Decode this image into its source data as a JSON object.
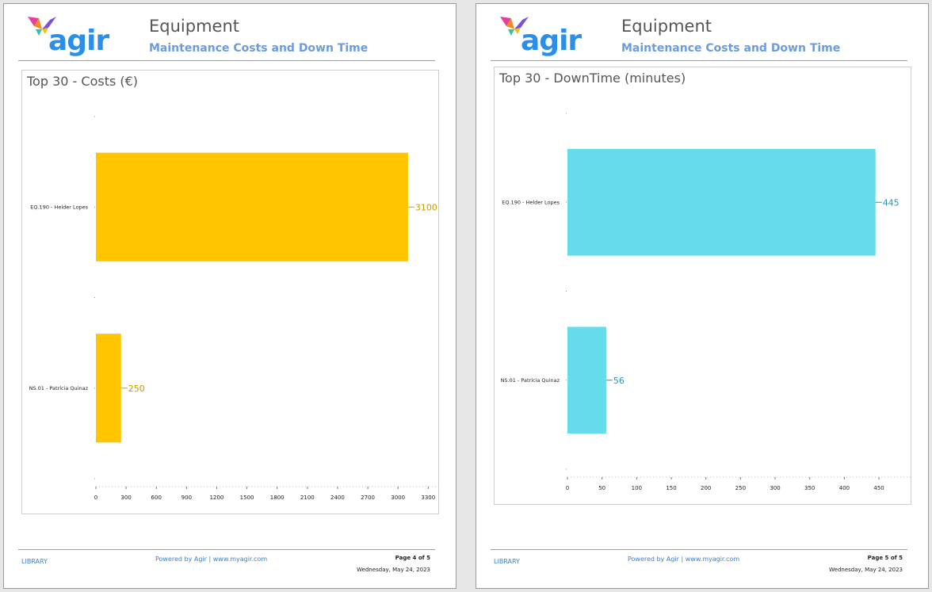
{
  "pages": [
    {
      "logo_text": "agir",
      "title": "Equipment",
      "subtitle": "Maintenance Costs and Down Time",
      "footer": {
        "library": "LIBRARY",
        "powered": "Powered by  Agir  |  www.myagir.com",
        "page_no": "Page 4 of 5",
        "date": "Wednesday, May 24, 2023"
      }
    },
    {
      "logo_text": "agir",
      "title": "Equipment",
      "subtitle": "Maintenance Costs and Down Time",
      "footer": {
        "library": "LIBRARY",
        "powered": "Powered by  Agir  |  www.myagir.com",
        "page_no": "Page 5 of 5",
        "date": "Wednesday, May 24, 2023"
      }
    }
  ],
  "colors": {
    "costs_bar": "#ffc600",
    "costs_label": "#c79a00",
    "downtime_bar": "#66dbea",
    "downtime_label": "#2a93b0",
    "brand": "#2b8fe8"
  },
  "chart_data": [
    {
      "type": "bar",
      "orientation": "horizontal",
      "title": "Top 30 - Costs (€)",
      "categories": [
        "EQ.190 - Helder Lopes",
        "NS.01 - Patrícia Quinaz"
      ],
      "values": [
        3100,
        250
      ],
      "data_labels": [
        "3100",
        "250"
      ],
      "xlim": [
        0,
        3400
      ],
      "xticks": [
        0,
        300,
        600,
        900,
        1200,
        1500,
        1800,
        2100,
        2400,
        2700,
        3000,
        3300
      ],
      "grid": false,
      "legend": "none"
    },
    {
      "type": "bar",
      "orientation": "horizontal",
      "title": "Top 30 - DownTime (minutes)",
      "categories": [
        "EQ.190 - Helder Lopes",
        "NS.01 - Patrícia Quinaz"
      ],
      "values": [
        445,
        56
      ],
      "data_labels": [
        "445",
        "56"
      ],
      "xlim": [
        0,
        490
      ],
      "xticks": [
        0,
        50,
        100,
        150,
        200,
        250,
        300,
        350,
        400,
        450
      ],
      "grid": false,
      "legend": "none"
    }
  ]
}
